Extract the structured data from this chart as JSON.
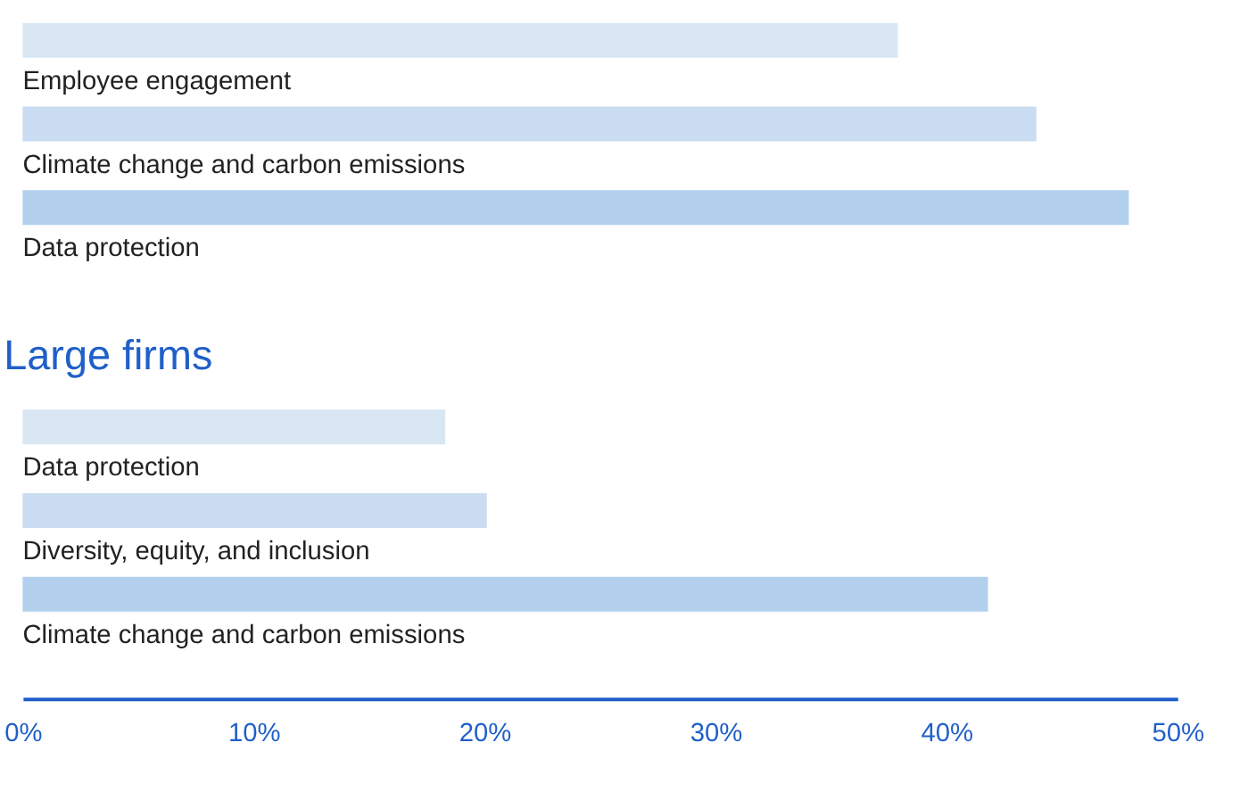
{
  "chart_data": [
    {
      "type": "bar",
      "orientation": "horizontal",
      "categories": [
        "Employee engagement",
        "Climate change and carbon emissions",
        "Data protection"
      ],
      "values": [
        37.9,
        43.9,
        47.9
      ],
      "colors": [
        "#d9e7f5",
        "#cadcf2",
        "#b3cfee"
      ],
      "xlim": [
        0,
        50
      ]
    },
    {
      "type": "bar",
      "orientation": "horizontal",
      "title": "Large firms",
      "categories": [
        "Data protection",
        "Diversity, equity, and inclusion",
        "Climate change and carbon emissions"
      ],
      "values": [
        18.3,
        20.1,
        41.8
      ],
      "colors": [
        "#d9e7f5",
        "#cadcf2",
        "#b3cfee"
      ],
      "xlim": [
        0,
        50
      ],
      "xticks": [
        {
          "value": 0,
          "label": "0%"
        },
        {
          "value": 10,
          "label": "10%"
        },
        {
          "value": 20,
          "label": "20%"
        },
        {
          "value": 30,
          "label": "30%"
        },
        {
          "value": 40,
          "label": "40%"
        },
        {
          "value": 50,
          "label": "50%"
        }
      ]
    }
  ]
}
